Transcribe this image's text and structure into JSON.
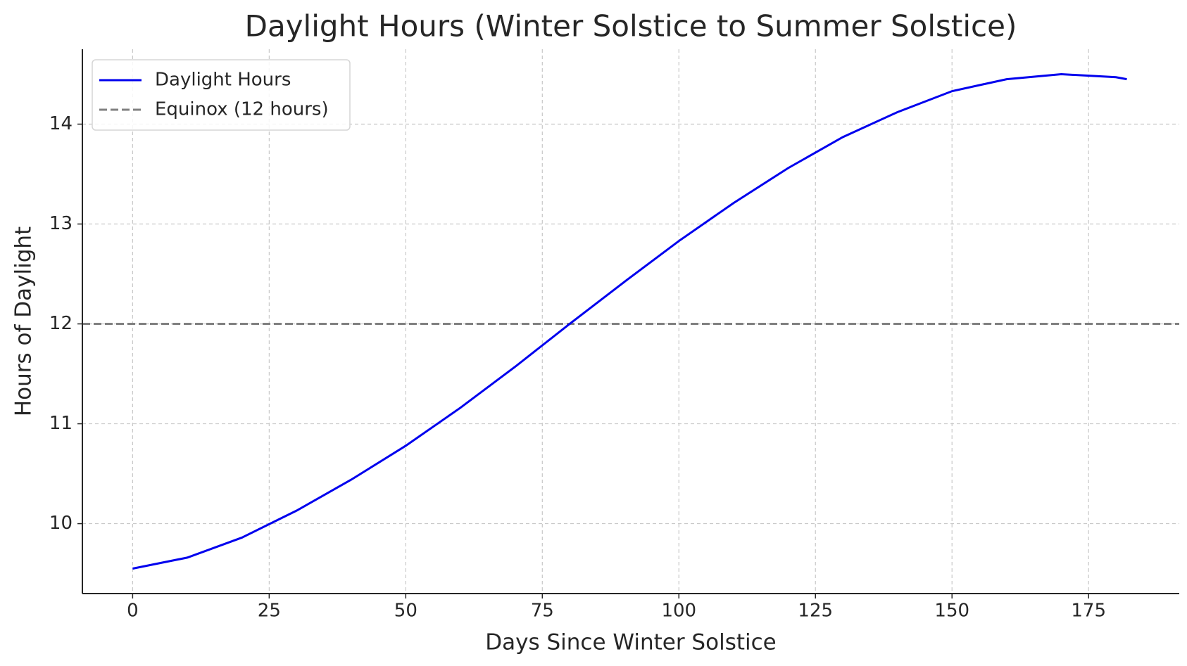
{
  "chart_data": {
    "type": "line",
    "title": "Daylight Hours (Winter Solstice to Summer Solstice)",
    "x_label": "Days Since Winter Solstice",
    "y_label": "Hours of Daylight",
    "x": [
      0,
      10,
      20,
      30,
      40,
      50,
      60,
      70,
      80,
      90,
      100,
      110,
      120,
      130,
      140,
      150,
      160,
      170,
      180,
      182
    ],
    "series": [
      {
        "name": "Daylight Hours",
        "color": "#0000ee",
        "values": [
          9.55,
          9.66,
          9.86,
          10.13,
          10.44,
          10.78,
          11.16,
          11.57,
          12.0,
          12.42,
          12.83,
          13.21,
          13.56,
          13.87,
          14.12,
          14.33,
          14.45,
          14.5,
          14.47,
          14.45
        ]
      }
    ],
    "reference_lines": [
      {
        "name": "Equinox (12 hours)",
        "value": 12,
        "color": "#808080"
      }
    ],
    "xlim": [
      -9.2,
      191.6
    ],
    "ylim": [
      9.3,
      14.75
    ],
    "xticks": [
      0,
      25,
      50,
      75,
      100,
      125,
      150,
      175
    ],
    "yticks": [
      10,
      11,
      12,
      13,
      14
    ],
    "grid": true,
    "legend": "upper left"
  }
}
